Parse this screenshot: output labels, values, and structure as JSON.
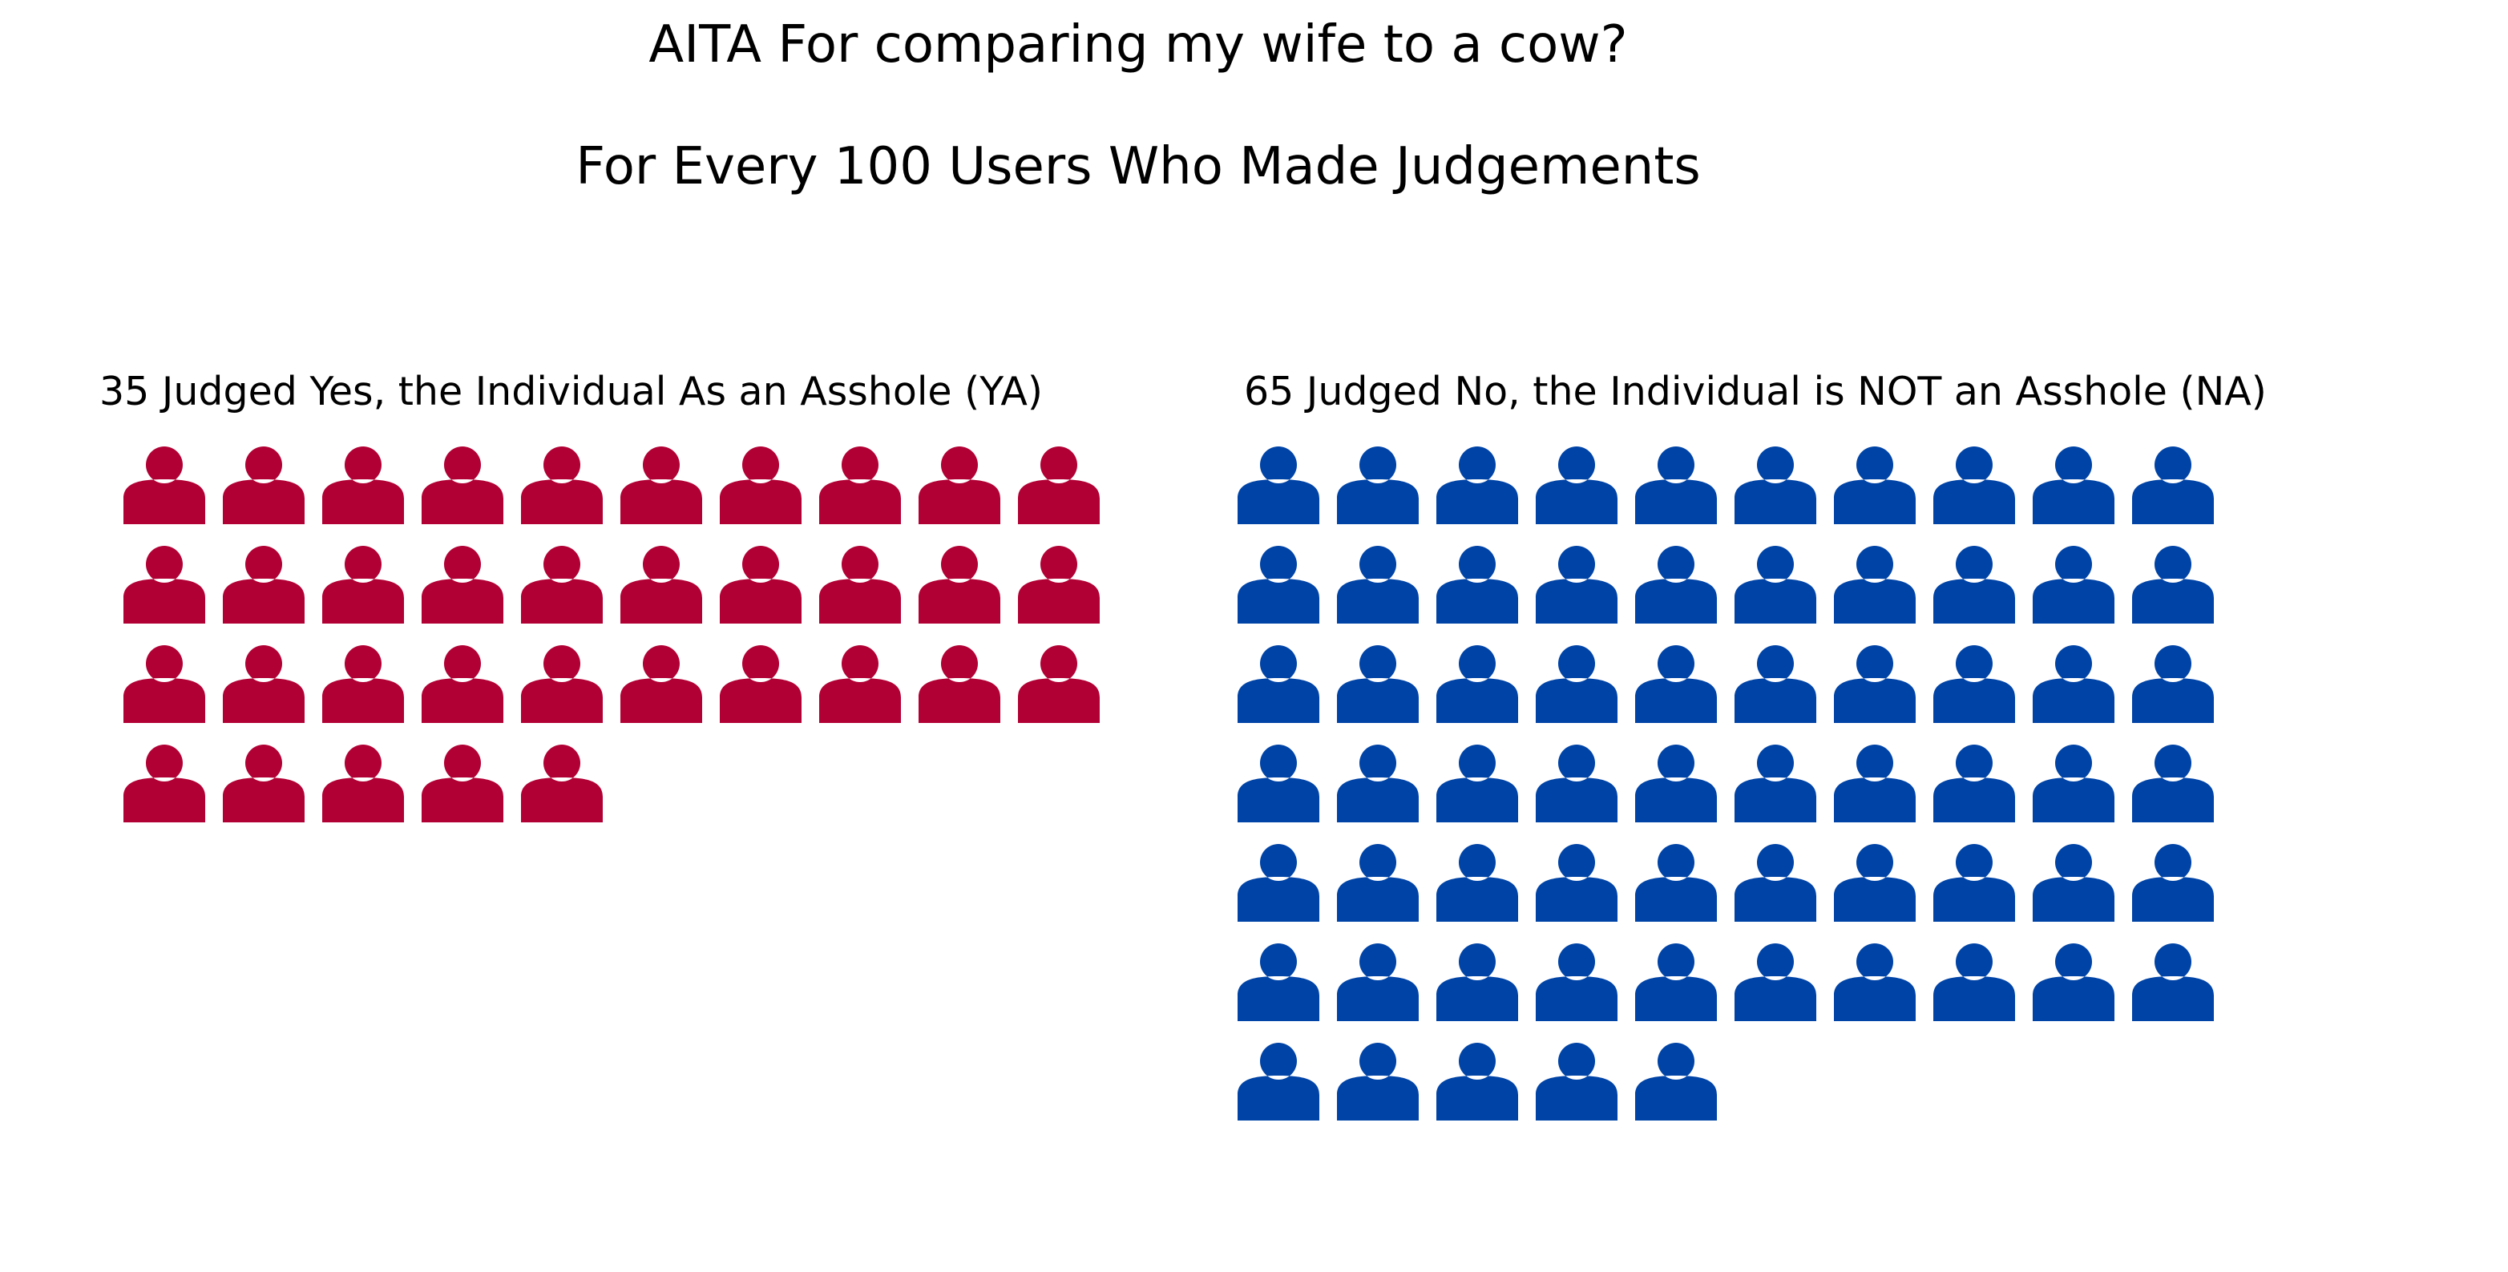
{
  "chart_data": {
    "type": "pictogram",
    "title": "AITA For comparing my wife to a cow?",
    "subtitle": "For Every 100 Users Who Made Judgements",
    "columns_per_row": 10,
    "groups": [
      {
        "key": "ya",
        "label": "35 Judged Yes, the Individual As an Asshole (YA)",
        "count": 35,
        "color": "#b10034"
      },
      {
        "key": "na",
        "label": "65 Judged No, the Individual is NOT an Asshole (NA)",
        "count": 65,
        "color": "#0043a6"
      }
    ],
    "icon": "person-icon"
  }
}
